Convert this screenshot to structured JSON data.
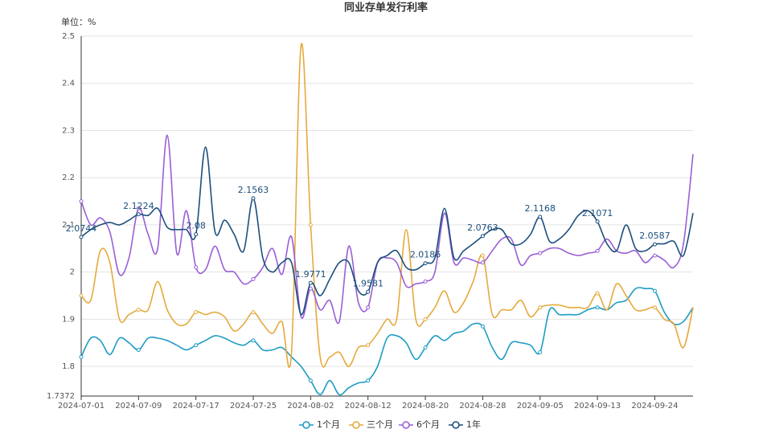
{
  "chart_data": {
    "type": "line",
    "title": "同业存单发行利率",
    "y_axis_label": "单位：%",
    "categories": [
      "2024-07-01",
      null,
      null,
      null,
      null,
      null,
      "2024-07-09",
      null,
      null,
      null,
      null,
      null,
      "2024-07-17",
      null,
      null,
      null,
      null,
      null,
      "2024-07-25",
      null,
      null,
      null,
      null,
      null,
      "2024-08-02",
      null,
      null,
      null,
      null,
      null,
      "2024-08-12",
      null,
      null,
      null,
      null,
      null,
      "2024-08-20",
      null,
      null,
      null,
      null,
      null,
      "2024-08-28",
      null,
      null,
      null,
      null,
      null,
      "2024-09-05",
      null,
      null,
      null,
      null,
      null,
      "2024-09-13",
      null,
      null,
      null,
      null,
      null,
      "2024-09-24",
      null,
      null,
      null,
      null
    ],
    "ylim": [
      1.7372,
      2.5
    ],
    "yticks": [
      1.7372,
      1.8,
      1.9,
      2,
      2.1,
      2.2,
      2.3,
      2.4,
      2.5
    ],
    "grid": true,
    "legend": "bottom",
    "series": [
      {
        "name": "1个月",
        "color": "#1e9bc4",
        "values": [
          1.82,
          1.86,
          1.855,
          1.825,
          1.86,
          1.85,
          1.835,
          1.86,
          1.86,
          1.855,
          1.845,
          1.835,
          1.845,
          1.855,
          1.865,
          1.86,
          1.85,
          1.845,
          1.855,
          1.835,
          1.835,
          1.84,
          1.82,
          1.8,
          1.77,
          1.74,
          1.77,
          1.74,
          1.755,
          1.765,
          1.77,
          1.8,
          1.86,
          1.865,
          1.85,
          1.815,
          1.84,
          1.865,
          1.855,
          1.87,
          1.875,
          1.89,
          1.885,
          1.84,
          1.815,
          1.85,
          1.85,
          1.845,
          1.83,
          1.92,
          1.91,
          1.91,
          1.91,
          1.92,
          1.925,
          1.92,
          1.935,
          1.94,
          1.965,
          1.965,
          1.96,
          1.915,
          1.89,
          1.895,
          1.925
        ]
      },
      {
        "name": "三个月",
        "color": "#e6a93c",
        "values": [
          1.95,
          1.94,
          2.045,
          2.02,
          1.9,
          1.91,
          1.92,
          1.92,
          1.98,
          1.92,
          1.89,
          1.89,
          1.915,
          1.91,
          1.915,
          1.905,
          1.875,
          1.89,
          1.915,
          1.89,
          1.87,
          1.895,
          1.83,
          2.48,
          2.1,
          1.82,
          1.82,
          1.83,
          1.8,
          1.84,
          1.845,
          1.87,
          1.9,
          1.9,
          2.09,
          1.9,
          1.9,
          1.925,
          1.96,
          1.915,
          1.935,
          1.98,
          2.035,
          1.91,
          1.92,
          1.92,
          1.94,
          1.905,
          1.925,
          1.93,
          1.93,
          1.925,
          1.925,
          1.925,
          1.955,
          1.92,
          1.975,
          1.95,
          1.92,
          1.92,
          1.925,
          1.9,
          1.89,
          1.84,
          1.925
        ]
      },
      {
        "name": "6个月",
        "color": "#9a5fd6",
        "values": [
          2.15,
          2.1,
          2.115,
          2.085,
          1.995,
          2.03,
          2.135,
          2.08,
          2.05,
          2.29,
          2.04,
          2.13,
          2.01,
          2.005,
          2.055,
          2.005,
          2.0,
          1.975,
          1.985,
          2.01,
          2.05,
          1.995,
          2.075,
          1.905,
          1.965,
          1.92,
          1.94,
          1.895,
          2.055,
          1.935,
          1.925,
          2.02,
          2.03,
          2.02,
          1.97,
          1.975,
          1.98,
          2.0,
          2.125,
          2.02,
          2.03,
          2.025,
          2.02,
          2.045,
          2.07,
          2.07,
          2.015,
          2.035,
          2.04,
          2.05,
          2.05,
          2.04,
          2.035,
          2.04,
          2.045,
          2.07,
          2.045,
          2.04,
          2.045,
          2.02,
          2.035,
          2.025,
          2.01,
          2.06,
          2.25
        ]
      },
      {
        "name": "1年",
        "color": "#1b4f7c",
        "values": [
          2.0744,
          2.09,
          2.1,
          2.105,
          2.1,
          2.11,
          2.1224,
          2.12,
          2.135,
          2.095,
          2.09,
          2.09,
          2.08,
          2.265,
          2.085,
          2.11,
          2.08,
          2.045,
          2.1563,
          2.03,
          2.0,
          2.02,
          2.02,
          1.91,
          1.9771,
          1.95,
          1.985,
          2.02,
          2.02,
          1.96,
          1.9581,
          2.02,
          2.035,
          2.045,
          2.01,
          2.005,
          2.0186,
          2.03,
          2.135,
          2.03,
          2.045,
          2.06,
          2.0763,
          2.09,
          2.09,
          2.06,
          2.06,
          2.08,
          2.1168,
          2.065,
          2.07,
          2.09,
          2.12,
          2.13,
          2.1071,
          2.06,
          2.045,
          2.1,
          2.05,
          2.045,
          2.0587,
          2.06,
          2.065,
          2.035,
          2.125
        ]
      }
    ]
  }
}
